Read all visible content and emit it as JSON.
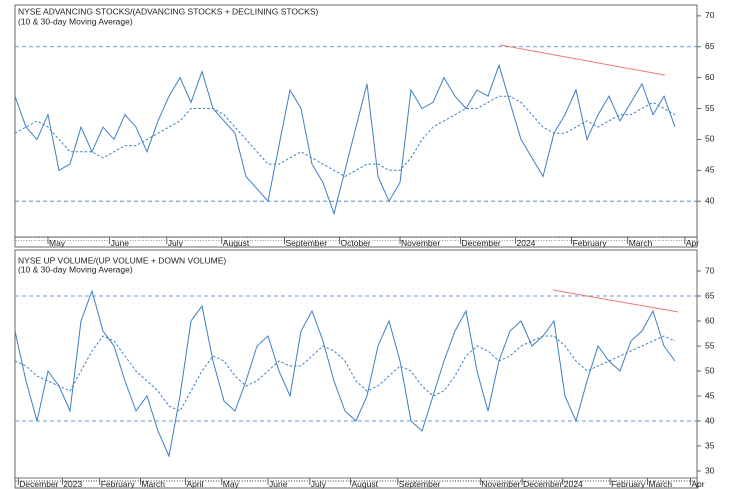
{
  "chart_data": [
    {
      "type": "line",
      "title": "NYSE ADVANCING STOCKS/(ADVANCING STOCKS + DECLINING STOCKS)",
      "subtitle": "(10 & 30-day Moving Average)",
      "xlim": [
        0,
        62
      ],
      "xticks": [
        {
          "value": 3,
          "label": "May"
        },
        {
          "value": 8.6,
          "label": "June"
        },
        {
          "value": 13.8,
          "label": "July"
        },
        {
          "value": 18.8,
          "label": "August"
        },
        {
          "value": 24.5,
          "label": "September"
        },
        {
          "value": 29.5,
          "label": "October"
        },
        {
          "value": 35,
          "label": "November"
        },
        {
          "value": 40.5,
          "label": "December"
        },
        {
          "value": 45.5,
          "label": "2024"
        },
        {
          "value": 50.6,
          "label": "February"
        },
        {
          "value": 55.7,
          "label": "March"
        },
        {
          "value": 60.9,
          "label": "Apr"
        }
      ],
      "ylim": [
        34.2,
        71.6
      ],
      "yticks": [
        40,
        45,
        50,
        55,
        60,
        65,
        70
      ],
      "hlines": [
        40,
        65
      ],
      "trendline": {
        "color": "#f07878",
        "x": [
          44.1,
          59.1
        ],
        "values": [
          65.3,
          60.4
        ]
      },
      "series": [
        {
          "color": "#3d7fc4",
          "dash": false,
          "values": [
            57,
            52,
            50,
            54,
            45,
            46,
            52,
            48,
            52,
            50,
            54,
            52,
            48,
            53,
            57,
            60,
            56,
            61,
            55,
            53,
            51,
            44,
            42,
            40,
            49,
            58,
            55,
            46,
            43,
            38,
            45,
            52,
            59,
            44,
            40,
            43,
            58,
            55,
            56,
            60,
            57,
            55,
            58,
            57,
            62,
            56,
            50,
            47,
            44,
            51,
            54,
            58,
            50,
            54,
            57,
            53,
            56,
            59,
            54,
            57,
            52
          ]
        },
        {
          "color": "#3d7fc4",
          "dash": true,
          "values": [
            51,
            52,
            53,
            52,
            50,
            48,
            48,
            48,
            47,
            48,
            49,
            49,
            50,
            51,
            52,
            53,
            55,
            55,
            55,
            54,
            52,
            50,
            48,
            46,
            46,
            47,
            48,
            47,
            46,
            45,
            44,
            45,
            46,
            46,
            45,
            45,
            47,
            50,
            52,
            53,
            54,
            55,
            55,
            56,
            57,
            57,
            56,
            54,
            52,
            51,
            51,
            52,
            53,
            52,
            53,
            54,
            54,
            55,
            56,
            55,
            54
          ]
        }
      ]
    },
    {
      "type": "line",
      "title": "NYSE UP VOLUME/(UP VOLUME + DOWN VOLUME)",
      "subtitle": "(10 & 30-day Moving Average)",
      "xlim": [
        0,
        62
      ],
      "xticks": [
        {
          "value": 0.3,
          "label": "December"
        },
        {
          "value": 4.3,
          "label": "2023"
        },
        {
          "value": 7.7,
          "label": "February"
        },
        {
          "value": 11.4,
          "label": "March"
        },
        {
          "value": 15.5,
          "label": "April"
        },
        {
          "value": 18.8,
          "label": "May"
        },
        {
          "value": 23,
          "label": "June"
        },
        {
          "value": 26.8,
          "label": "July"
        },
        {
          "value": 30.5,
          "label": "August"
        },
        {
          "value": 34.8,
          "label": "September"
        },
        {
          "value": 42.3,
          "label": "November"
        },
        {
          "value": 46.1,
          "label": "December"
        },
        {
          "value": 49.8,
          "label": "2024"
        },
        {
          "value": 54.1,
          "label": "February"
        },
        {
          "value": 57.5,
          "label": "March"
        },
        {
          "value": 61.4,
          "label": "Apr"
        }
      ],
      "ylim": [
        28.6,
        73
      ],
      "yticks": [
        30,
        35,
        40,
        45,
        50,
        55,
        60,
        65,
        70
      ],
      "hlines": [
        40,
        65
      ],
      "trendline": {
        "color": "#f07878",
        "x": [
          48.9,
          60.3
        ],
        "values": [
          66.2,
          61.8
        ]
      },
      "series": [
        {
          "color": "#3d7fc4",
          "dash": false,
          "values": [
            58,
            48,
            40,
            50,
            47,
            42,
            60,
            66,
            58,
            55,
            48,
            42,
            45,
            38,
            33,
            45,
            60,
            63,
            52,
            44,
            42,
            48,
            55,
            57,
            50,
            45,
            58,
            62,
            56,
            48,
            42,
            40,
            45,
            55,
            60,
            52,
            40,
            38,
            45,
            52,
            58,
            62,
            50,
            42,
            52,
            58,
            60,
            55,
            57,
            60,
            45,
            40,
            48,
            55,
            52,
            50,
            56,
            58,
            62,
            55,
            52
          ]
        },
        {
          "color": "#3d7fc4",
          "dash": true,
          "values": [
            52,
            51,
            49,
            48,
            47,
            46,
            50,
            54,
            57,
            56,
            53,
            50,
            48,
            46,
            43,
            42,
            46,
            50,
            53,
            52,
            49,
            47,
            48,
            50,
            52,
            51,
            51,
            53,
            55,
            54,
            52,
            48,
            46,
            47,
            49,
            51,
            50,
            47,
            45,
            46,
            49,
            53,
            55,
            54,
            52,
            53,
            55,
            56,
            57,
            57,
            55,
            52,
            50,
            51,
            52,
            53,
            54,
            55,
            56,
            57,
            56
          ]
        }
      ]
    }
  ]
}
